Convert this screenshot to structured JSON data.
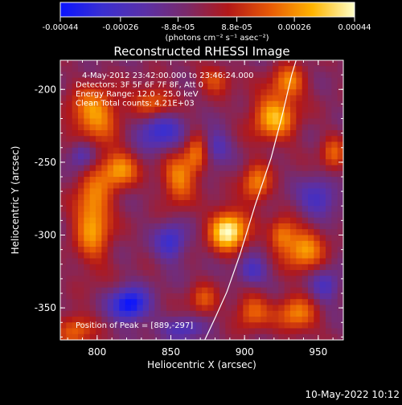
{
  "colorbar": {
    "stops": [
      "#0a14ff",
      "#3a2fd0",
      "#5a30a8",
      "#7a2a6a",
      "#b31818",
      "#e85a05",
      "#ffb400",
      "#ffffc8"
    ],
    "ticks": [
      {
        "value": -0.00044,
        "label": "-0.00044"
      },
      {
        "value": -0.00026,
        "label": "-0.00026"
      },
      {
        "value": -8.8e-05,
        "label": "-8.8e-05"
      },
      {
        "value": 8.8e-05,
        "label": "8.8e-05"
      },
      {
        "value": 0.00026,
        "label": "0.00026"
      },
      {
        "value": 0.00044,
        "label": "0.00044"
      }
    ],
    "range": [
      -0.00044,
      0.00044
    ],
    "unit_label": "(photons cm⁻² s⁻¹ asec⁻²)"
  },
  "chart_data": {
    "type": "heatmap",
    "title": "Reconstructed RHESSI Image",
    "xlabel": "Heliocentric X (arcsec)",
    "ylabel": "Heliocentric Y (arcsec)",
    "xlim": [
      775,
      967
    ],
    "ylim": [
      -372,
      -180
    ],
    "xticks": [
      800,
      850,
      900,
      950
    ],
    "yticks": [
      -200,
      -250,
      -300,
      -350
    ],
    "info_lines": [
      "4-May-2012 23:42:00.000 to 23:46:24.000",
      "Detectors: 3F 5F 6F 7F 8F, Att 0",
      "Energy Range: 12.0 - 25.0 keV",
      "Clean    Total counts: 4.21E+03"
    ],
    "peak_label": "Position of Peak = [889,-297]",
    "peak_position": [
      889,
      -297
    ],
    "limb_curve": [
      [
        873,
        -372
      ],
      [
        880,
        -357
      ],
      [
        888,
        -339
      ],
      [
        897,
        -313
      ],
      [
        907,
        -280
      ],
      [
        918,
        -247
      ],
      [
        926,
        -216
      ],
      [
        932,
        -190
      ],
      [
        935,
        -180
      ]
    ],
    "grid_cols": 48,
    "grid_rows": 48,
    "blobs": [
      {
        "x": 889,
        "y": -297,
        "sx": 9,
        "sy": 10,
        "a": 1.0
      },
      {
        "x": 797,
        "y": -288,
        "sx": 9,
        "sy": 22,
        "a": 0.72
      },
      {
        "x": 815,
        "y": -255,
        "sx": 9,
        "sy": 9,
        "a": 0.65
      },
      {
        "x": 798,
        "y": -217,
        "sx": 12,
        "sy": 13,
        "a": 0.68
      },
      {
        "x": 838,
        "y": -210,
        "sx": 10,
        "sy": 8,
        "a": 0.62
      },
      {
        "x": 855,
        "y": -262,
        "sx": 8,
        "sy": 12,
        "a": 0.6
      },
      {
        "x": 868,
        "y": -244,
        "sx": 6,
        "sy": 10,
        "a": 0.55
      },
      {
        "x": 920,
        "y": -219,
        "sx": 11,
        "sy": 12,
        "a": 0.72
      },
      {
        "x": 908,
        "y": -265,
        "sx": 7,
        "sy": 10,
        "a": 0.58
      },
      {
        "x": 940,
        "y": -310,
        "sx": 10,
        "sy": 11,
        "a": 0.64
      },
      {
        "x": 925,
        "y": -300,
        "sx": 6,
        "sy": 8,
        "a": 0.5
      },
      {
        "x": 935,
        "y": -355,
        "sx": 10,
        "sy": 9,
        "a": 0.58
      },
      {
        "x": 905,
        "y": -352,
        "sx": 8,
        "sy": 9,
        "a": 0.5
      },
      {
        "x": 785,
        "y": -365,
        "sx": 9,
        "sy": 8,
        "a": 0.5
      },
      {
        "x": 872,
        "y": -345,
        "sx": 7,
        "sy": 8,
        "a": 0.42
      },
      {
        "x": 930,
        "y": -195,
        "sx": 8,
        "sy": 8,
        "a": 0.55
      },
      {
        "x": 880,
        "y": -193,
        "sx": 8,
        "sy": 7,
        "a": 0.42
      },
      {
        "x": 960,
        "y": -245,
        "sx": 6,
        "sy": 9,
        "a": 0.45
      },
      {
        "x": 822,
        "y": -348,
        "sx": 9,
        "sy": 8,
        "a": -0.85
      },
      {
        "x": 842,
        "y": -227,
        "sx": 11,
        "sy": 10,
        "a": -0.6
      },
      {
        "x": 790,
        "y": -245,
        "sx": 6,
        "sy": 7,
        "a": -0.5
      },
      {
        "x": 850,
        "y": -305,
        "sx": 7,
        "sy": 9,
        "a": -0.55
      },
      {
        "x": 880,
        "y": -240,
        "sx": 7,
        "sy": 8,
        "a": -0.45
      },
      {
        "x": 950,
        "y": -275,
        "sx": 9,
        "sy": 9,
        "a": -0.5
      },
      {
        "x": 955,
        "y": -335,
        "sx": 7,
        "sy": 8,
        "a": -0.45
      },
      {
        "x": 905,
        "y": -325,
        "sx": 7,
        "sy": 7,
        "a": -0.48
      },
      {
        "x": 860,
        "y": -365,
        "sx": 10,
        "sy": 6,
        "a": -0.4
      }
    ]
  },
  "footer": {
    "timestamp": "10-May-2022 10:12"
  }
}
